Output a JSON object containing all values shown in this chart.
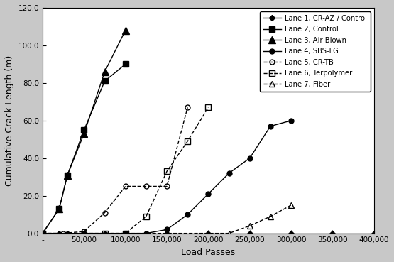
{
  "title": "",
  "xlabel": "Load Passes",
  "ylabel": "Cumulative Crack Length (m)",
  "xlim": [
    0,
    400000
  ],
  "ylim": [
    0,
    120
  ],
  "yticks": [
    0,
    20,
    40,
    60,
    80,
    100,
    120
  ],
  "xticks": [
    0,
    50000,
    100000,
    150000,
    200000,
    250000,
    300000,
    350000,
    400000
  ],
  "background_color": "#c8c8c8",
  "plot_background": "#ffffff",
  "series": [
    {
      "label": "Lane 1, CR-AZ / Control",
      "color": "#000000",
      "linestyle": "-",
      "marker": "D",
      "markersize": 4,
      "fillstyle": "full",
      "x": [
        0,
        20000,
        30000,
        50000,
        75000,
        100000,
        150000,
        200000,
        250000,
        300000,
        350000,
        400000
      ],
      "y": [
        0,
        0,
        0,
        0,
        0,
        0,
        0,
        0,
        0,
        0,
        0,
        0
      ]
    },
    {
      "label": "Lane 2, Control",
      "color": "#000000",
      "linestyle": "-",
      "marker": "s",
      "markersize": 6,
      "fillstyle": "full",
      "x": [
        0,
        20000,
        30000,
        50000,
        75000,
        100000
      ],
      "y": [
        0,
        13,
        31,
        55,
        81,
        90
      ]
    },
    {
      "label": "Lane 3, Air Blown",
      "color": "#000000",
      "linestyle": "-",
      "marker": "^",
      "markersize": 7,
      "fillstyle": "full",
      "x": [
        0,
        20000,
        30000,
        50000,
        75000,
        100000
      ],
      "y": [
        0,
        13,
        31,
        53,
        86,
        108
      ]
    },
    {
      "label": "Lane 4, SBS-LG",
      "color": "#000000",
      "linestyle": "-",
      "marker": "o",
      "markersize": 5,
      "fillstyle": "full",
      "x": [
        0,
        50000,
        100000,
        125000,
        150000,
        175000,
        200000,
        225000,
        250000,
        275000,
        300000
      ],
      "y": [
        0,
        0,
        0,
        0,
        2,
        10,
        21,
        32,
        40,
        57,
        60
      ]
    },
    {
      "label": "Lane 5, CR-TB",
      "color": "#000000",
      "linestyle": "--",
      "marker": "o",
      "markersize": 5,
      "fillstyle": "none",
      "x": [
        0,
        25000,
        50000,
        75000,
        100000,
        125000,
        150000,
        175000
      ],
      "y": [
        0,
        0,
        1,
        11,
        25,
        25,
        25,
        67
      ]
    },
    {
      "label": "Lane 6, Terpolymer",
      "color": "#000000",
      "linestyle": "--",
      "marker": "s",
      "markersize": 6,
      "fillstyle": "none",
      "x": [
        0,
        75000,
        100000,
        125000,
        150000,
        175000,
        200000
      ],
      "y": [
        0,
        0,
        0,
        9,
        33,
        49,
        67
      ]
    },
    {
      "label": "Lane 7, Fiber",
      "color": "#000000",
      "linestyle": "--",
      "marker": "^",
      "markersize": 6,
      "fillstyle": "none",
      "x": [
        0,
        100000,
        200000,
        225000,
        250000,
        275000,
        300000
      ],
      "y": [
        0,
        0,
        0,
        0,
        4,
        9,
        15
      ]
    }
  ]
}
